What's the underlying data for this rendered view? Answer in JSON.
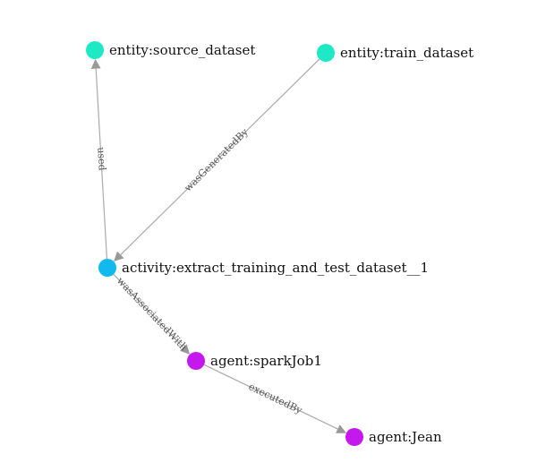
{
  "graph": {
    "colors": {
      "entity": "#1de9c4",
      "activity": "#11b9ef",
      "agent": "#c418ee",
      "edge": "#aaaaaa",
      "arrow": "#999999"
    },
    "nodes": [
      {
        "id": "source",
        "label": "entity:source_dataset",
        "type": "entity"
      },
      {
        "id": "train",
        "label": "entity:train_dataset",
        "type": "entity"
      },
      {
        "id": "activity",
        "label": "activity:extract_training_and_test_dataset__1",
        "type": "activity"
      },
      {
        "id": "spark",
        "label": "agent:sparkJob1",
        "type": "agent"
      },
      {
        "id": "jean",
        "label": "agent:Jean",
        "type": "agent"
      }
    ],
    "edges": [
      {
        "from": "activity",
        "to": "source",
        "label": "used"
      },
      {
        "from": "train",
        "to": "activity",
        "label": "wasGeneratedBy"
      },
      {
        "from": "activity",
        "to": "spark",
        "label": "wasAssociatedWith"
      },
      {
        "from": "spark",
        "to": "jean",
        "label": "executedBy"
      }
    ]
  }
}
